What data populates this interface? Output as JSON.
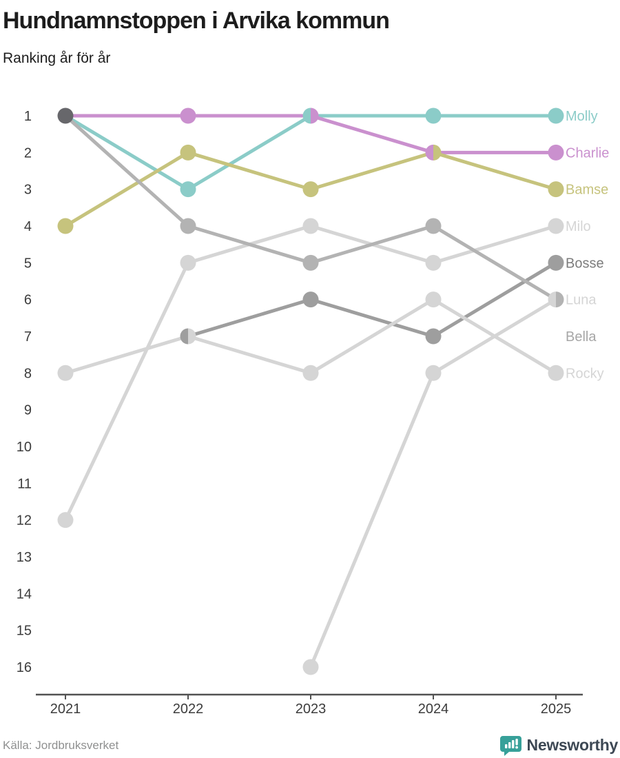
{
  "header": {
    "title": "Hundnamnstoppen i Arvika kommun",
    "subtitle": "Ranking år för år"
  },
  "footer": {
    "source": "Källa: Jordbruksverket",
    "brand": "Newsworthy",
    "brand_icon": "speech-bubble-bar-chart",
    "brand_icon_color": "#37a099",
    "brand_text_color": "#3d4854"
  },
  "chart_data": {
    "type": "line",
    "subtype": "bump-ranking",
    "title": "Hundnamnstoppen i Arvika kommun",
    "xlabel": "",
    "ylabel": "",
    "x": [
      2021,
      2022,
      2023,
      2024,
      2025
    ],
    "ylim": [
      1,
      16
    ],
    "y_inverted": true,
    "grid": false,
    "legend_position": "right-of-line-end",
    "series": [
      {
        "name": "Molly",
        "color": "#8bccc8",
        "values": [
          1,
          3,
          1,
          1,
          1
        ]
      },
      {
        "name": "Charlie",
        "color": "#ca90ce",
        "values": [
          1,
          1,
          1,
          2,
          2
        ]
      },
      {
        "name": "Bamse",
        "color": "#c6c37d",
        "values": [
          4,
          2,
          3,
          2,
          3
        ]
      },
      {
        "name": "Milo",
        "color": "#d5d5d5",
        "values": [
          12,
          5,
          4,
          5,
          4
        ]
      },
      {
        "name": "Bosse",
        "color": "#9e9e9e",
        "label_color": "#7c7c7c",
        "values": [
          null,
          7,
          6,
          7,
          5
        ]
      },
      {
        "name": "Luna",
        "color": "#d5d5d5",
        "values": [
          null,
          null,
          16,
          8,
          6
        ]
      },
      {
        "name": "Bella",
        "color": "#b3b3b3",
        "label_color": "#a6a6a6",
        "values": [
          1,
          4,
          5,
          4,
          6
        ]
      },
      {
        "name": "Rocky",
        "color": "#d5d5d5",
        "values": [
          8,
          7,
          8,
          6,
          8
        ]
      }
    ],
    "multi_tie_dot_color": "#67676b",
    "axis_color": "#515151",
    "tick_label_color": "#3c3c3c"
  }
}
